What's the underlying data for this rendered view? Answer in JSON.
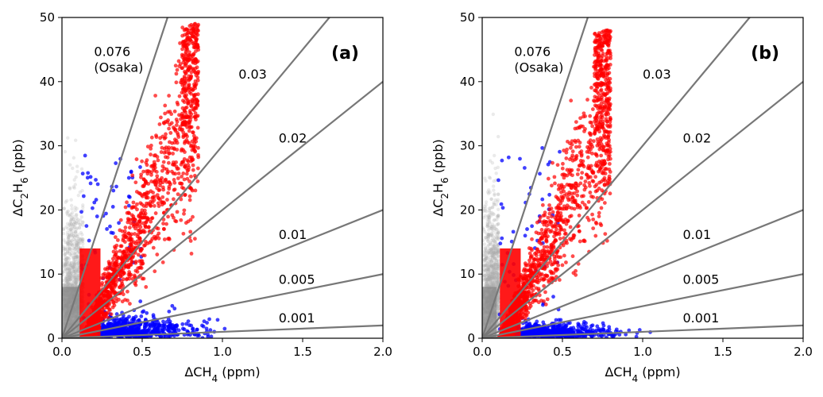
{
  "chart_data": [
    {
      "type": "scatter",
      "panel_label": "(a)",
      "xlabel": "ΔCH4 (ppm)",
      "ylabel": "ΔC2H6 (ppb)",
      "xlim": [
        0,
        2.0
      ],
      "ylim": [
        0,
        50
      ],
      "xticks": [
        "0.0",
        "0.5",
        "1.0",
        "1.5",
        "2.0"
      ],
      "yticks": [
        "0",
        "10",
        "20",
        "30",
        "40",
        "50"
      ],
      "grid": false,
      "ratio_lines": [
        {
          "label": "0.076",
          "sublabel": "(Osaka)",
          "slope": 0.076,
          "x": 0.2,
          "y": 44.0
        },
        {
          "label": "0.03",
          "slope": 0.03,
          "x": 1.1,
          "y": 40.5
        },
        {
          "label": "0.02",
          "slope": 0.02,
          "x": 1.35,
          "y": 30.5
        },
        {
          "label": "0.01",
          "slope": 0.01,
          "x": 1.35,
          "y": 15.5
        },
        {
          "label": "0.005",
          "slope": 0.005,
          "x": 1.35,
          "y": 8.5
        },
        {
          "label": "0.001",
          "slope": 0.001,
          "x": 1.35,
          "y": 2.5
        }
      ],
      "series": [
        {
          "color": "#aaaaaa",
          "cluster": {
            "xmin": 0.0,
            "xmax": 0.13,
            "ymax": 40
          }
        },
        {
          "color": "#0000ff",
          "cluster": {
            "xmin": 0.12,
            "xmax": 1.95,
            "ymax": 6
          }
        },
        {
          "color": "#ff0000",
          "cluster": {
            "xmin": 0.12,
            "xmax": 0.85,
            "ymax": 49
          }
        }
      ],
      "colors": {
        "line": "#777777",
        "grey": "#aaaaaa",
        "blue": "#0000ff",
        "red": "#ff0000"
      }
    },
    {
      "type": "scatter",
      "panel_label": "(b)",
      "xlabel": "ΔCH4 (ppm)",
      "ylabel": "ΔC2H6 (ppb)",
      "xlim": [
        0,
        2.0
      ],
      "ylim": [
        0,
        50
      ],
      "xticks": [
        "0.0",
        "0.5",
        "1.0",
        "1.5",
        "2.0"
      ],
      "yticks": [
        "0",
        "10",
        "20",
        "30",
        "40",
        "50"
      ],
      "grid": false,
      "ratio_lines": [
        {
          "label": "0.076",
          "sublabel": "(Osaka)",
          "slope": 0.076,
          "x": 0.2,
          "y": 44.0
        },
        {
          "label": "0.03",
          "slope": 0.03,
          "x": 1.0,
          "y": 40.5
        },
        {
          "label": "0.02",
          "slope": 0.02,
          "x": 1.25,
          "y": 30.5
        },
        {
          "label": "0.01",
          "slope": 0.01,
          "x": 1.25,
          "y": 15.5
        },
        {
          "label": "0.005",
          "slope": 0.005,
          "x": 1.25,
          "y": 8.5
        },
        {
          "label": "0.001",
          "slope": 0.001,
          "x": 1.25,
          "y": 2.5
        }
      ],
      "series": [
        {
          "color": "#aaaaaa",
          "cluster": {
            "xmin": 0.0,
            "xmax": 0.1,
            "ymax": 42
          }
        },
        {
          "color": "#0000ff",
          "cluster": {
            "xmin": 0.1,
            "xmax": 1.9,
            "ymax": 5
          }
        },
        {
          "color": "#ff0000",
          "cluster": {
            "xmin": 0.1,
            "xmax": 0.8,
            "ymax": 48
          }
        }
      ],
      "colors": {
        "line": "#777777",
        "grey": "#aaaaaa",
        "blue": "#0000ff",
        "red": "#ff0000"
      }
    }
  ]
}
